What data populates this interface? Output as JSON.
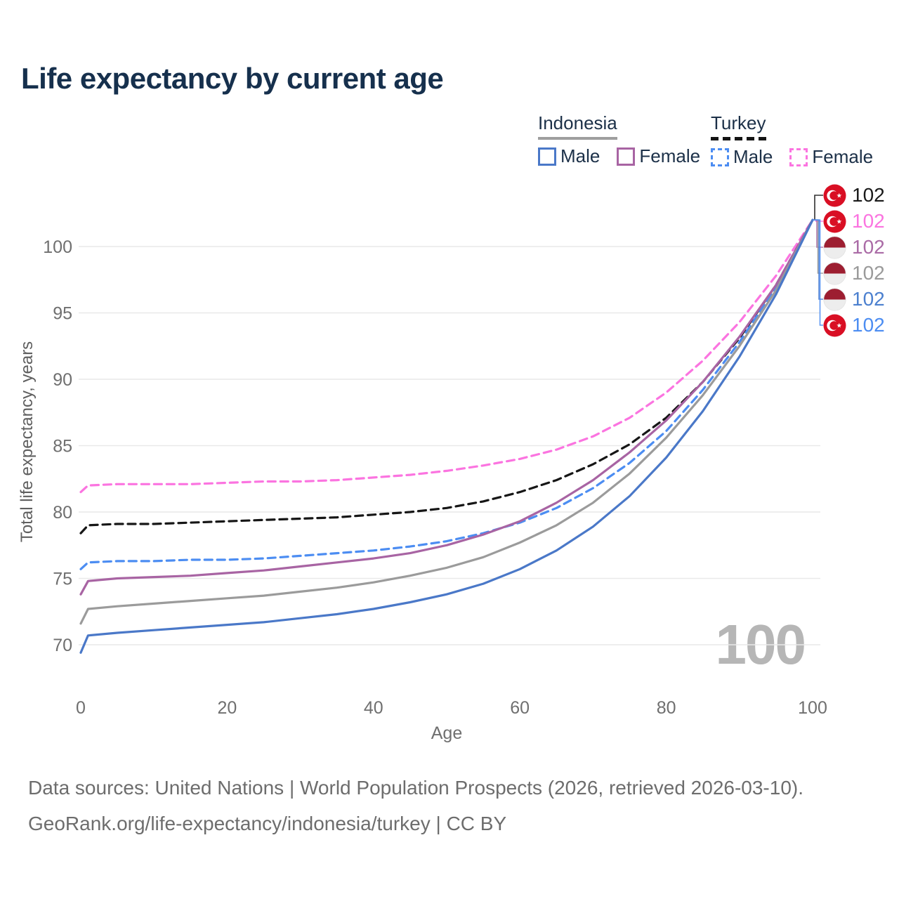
{
  "title": "Life expectancy by current age",
  "watermark": "100",
  "legend": {
    "groups": [
      {
        "label": "Indonesia",
        "line_style": "solid",
        "line_color": "#9e9e9e",
        "items": [
          {
            "label": "Male",
            "color": "#4a78c8",
            "dashed": false
          },
          {
            "label": "Female",
            "color": "#a864a3",
            "dashed": false
          }
        ]
      },
      {
        "label": "Turkey",
        "line_style": "dashed",
        "line_color": "#141414",
        "items": [
          {
            "label": "Male",
            "color": "#4c8df2",
            "dashed": true
          },
          {
            "label": "Female",
            "color": "#fb74e0",
            "dashed": true
          }
        ]
      }
    ]
  },
  "chart_data": {
    "type": "line",
    "title": "Life expectancy by current age",
    "xlabel": "Age",
    "ylabel": "Total life expectancy, years",
    "xlim": [
      0,
      100
    ],
    "ylim": [
      68,
      103
    ],
    "x_ticks": [
      0,
      20,
      40,
      60,
      80,
      100
    ],
    "y_ticks": [
      70,
      75,
      80,
      85,
      90,
      95,
      100
    ],
    "grid": "horizontal",
    "legend_position": "top-right",
    "x": [
      0,
      1,
      5,
      10,
      15,
      20,
      25,
      30,
      35,
      40,
      45,
      50,
      55,
      60,
      65,
      70,
      75,
      80,
      85,
      90,
      95,
      100
    ],
    "series": [
      {
        "name": "Turkey — Female",
        "country": "Turkey",
        "sex": "Female",
        "color": "#fb74e0",
        "dashed": true,
        "values": [
          81.5,
          82.0,
          82.1,
          82.1,
          82.1,
          82.2,
          82.3,
          82.3,
          82.4,
          82.6,
          82.8,
          83.1,
          83.5,
          84.0,
          84.7,
          85.7,
          87.1,
          89.0,
          91.4,
          94.3,
          97.8,
          102
        ]
      },
      {
        "name": "Turkey — Total",
        "country": "Turkey",
        "sex": "Both",
        "color": "#161616",
        "dashed": true,
        "values": [
          78.4,
          79.0,
          79.1,
          79.1,
          79.2,
          79.3,
          79.4,
          79.5,
          79.6,
          79.8,
          80.0,
          80.3,
          80.8,
          81.5,
          82.4,
          83.6,
          85.1,
          87.1,
          89.8,
          93.1,
          97.1,
          102
        ]
      },
      {
        "name": "Turkey — Male",
        "country": "Turkey",
        "sex": "Male",
        "color": "#4c8df2",
        "dashed": true,
        "values": [
          75.7,
          76.2,
          76.3,
          76.3,
          76.4,
          76.4,
          76.5,
          76.7,
          76.9,
          77.1,
          77.4,
          77.8,
          78.4,
          79.2,
          80.3,
          81.8,
          83.7,
          86.1,
          89.2,
          92.8,
          96.9,
          102
        ]
      },
      {
        "name": "Indonesia — Female",
        "country": "Indonesia",
        "sex": "Female",
        "color": "#a864a3",
        "dashed": false,
        "values": [
          73.8,
          74.8,
          75.0,
          75.1,
          75.2,
          75.4,
          75.6,
          75.9,
          76.2,
          76.5,
          76.9,
          77.5,
          78.3,
          79.3,
          80.7,
          82.4,
          84.5,
          86.9,
          89.8,
          93.2,
          97.1,
          102
        ]
      },
      {
        "name": "Indonesia — Total",
        "country": "Indonesia",
        "sex": "Both",
        "color": "#9b9b9b",
        "dashed": false,
        "values": [
          71.6,
          72.7,
          72.9,
          73.1,
          73.3,
          73.5,
          73.7,
          74.0,
          74.3,
          74.7,
          75.2,
          75.8,
          76.6,
          77.7,
          79.0,
          80.7,
          82.9,
          85.6,
          88.8,
          92.5,
          96.7,
          102
        ]
      },
      {
        "name": "Indonesia — Male",
        "country": "Indonesia",
        "sex": "Male",
        "color": "#4a78c8",
        "dashed": false,
        "values": [
          69.4,
          70.7,
          70.9,
          71.1,
          71.3,
          71.5,
          71.7,
          72.0,
          72.3,
          72.7,
          73.2,
          73.8,
          74.6,
          75.7,
          77.1,
          78.9,
          81.2,
          84.1,
          87.6,
          91.7,
          96.4,
          102
        ]
      }
    ]
  },
  "end_labels": [
    {
      "series": "Turkey — Total",
      "flag": "turkey",
      "value": "102",
      "color": "#1a1a1a"
    },
    {
      "series": "Turkey — Female",
      "flag": "turkey",
      "value": "102",
      "color": "#fb74e0"
    },
    {
      "series": "Indonesia — Female",
      "flag": "indonesia",
      "value": "102",
      "color": "#aa6ba6"
    },
    {
      "series": "Indonesia — Total",
      "flag": "indonesia",
      "value": "102",
      "color": "#9a9a9a"
    },
    {
      "series": "Indonesia — Male",
      "flag": "indonesia",
      "value": "102",
      "color": "#4c80cf"
    },
    {
      "series": "Turkey — Male",
      "flag": "turkey",
      "value": "102",
      "color": "#4c8df2"
    }
  ],
  "colors": {
    "title": "#16304d",
    "axis_text": "#6f6f6f",
    "gridline": "#e9e9e9",
    "watermark": "#b6b6b6",
    "turkey_flag_red": "#d90f24",
    "indonesia_flag_red": "#9d1e31"
  },
  "footer": {
    "line1": "Data sources: United Nations | World Population Prospects (2026, retrieved 2026-03-10).",
    "line2": "GeoRank.org/life-expectancy/indonesia/turkey | CC BY"
  }
}
